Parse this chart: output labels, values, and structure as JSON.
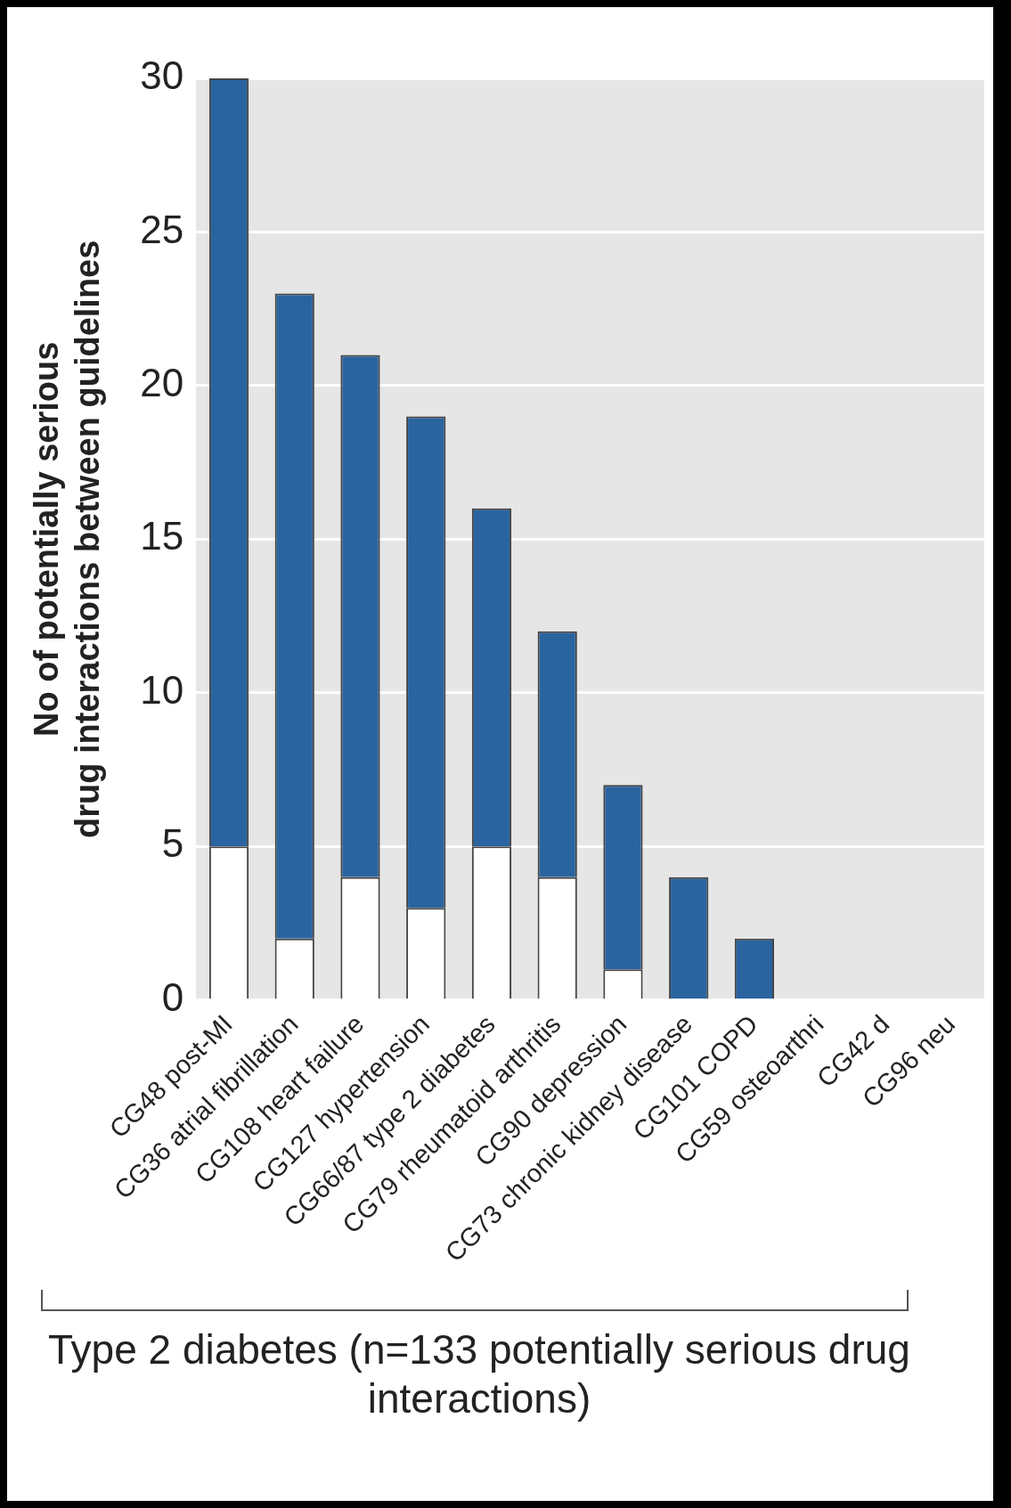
{
  "chart_data": {
    "type": "bar",
    "stacked": true,
    "ylabel": "No of potentially serious drug interactions between guidelines",
    "xlabel": "Type 2 diabetes (n=133 potentially serious drug interactions)",
    "categories": [
      "CG48 post-MI",
      "CG36 atrial fibrillation",
      "CG108 heart failure",
      "CG127 hypertension",
      "CG66/87 type 2 diabetes",
      "CG79 rheumatoid arthritis",
      "CG90 depression",
      "CG73 chronic kidney disease",
      "CG101 COPD",
      "CG59 osteoarthri",
      "CG42 d",
      "CG96 neu"
    ],
    "series": [
      {
        "color": "#ffffff",
        "values": [
          5,
          2,
          4,
          3,
          5,
          4,
          1,
          0,
          0,
          null,
          null,
          null
        ]
      },
      {
        "color": "#2a64a0",
        "values": [
          25,
          21,
          17,
          16,
          11,
          8,
          6,
          4,
          2,
          null,
          null,
          null
        ]
      }
    ],
    "ylim": [
      0,
      30
    ],
    "yticks": [
      0,
      5,
      10,
      15,
      20,
      25,
      30
    ],
    "grid": "y"
  }
}
